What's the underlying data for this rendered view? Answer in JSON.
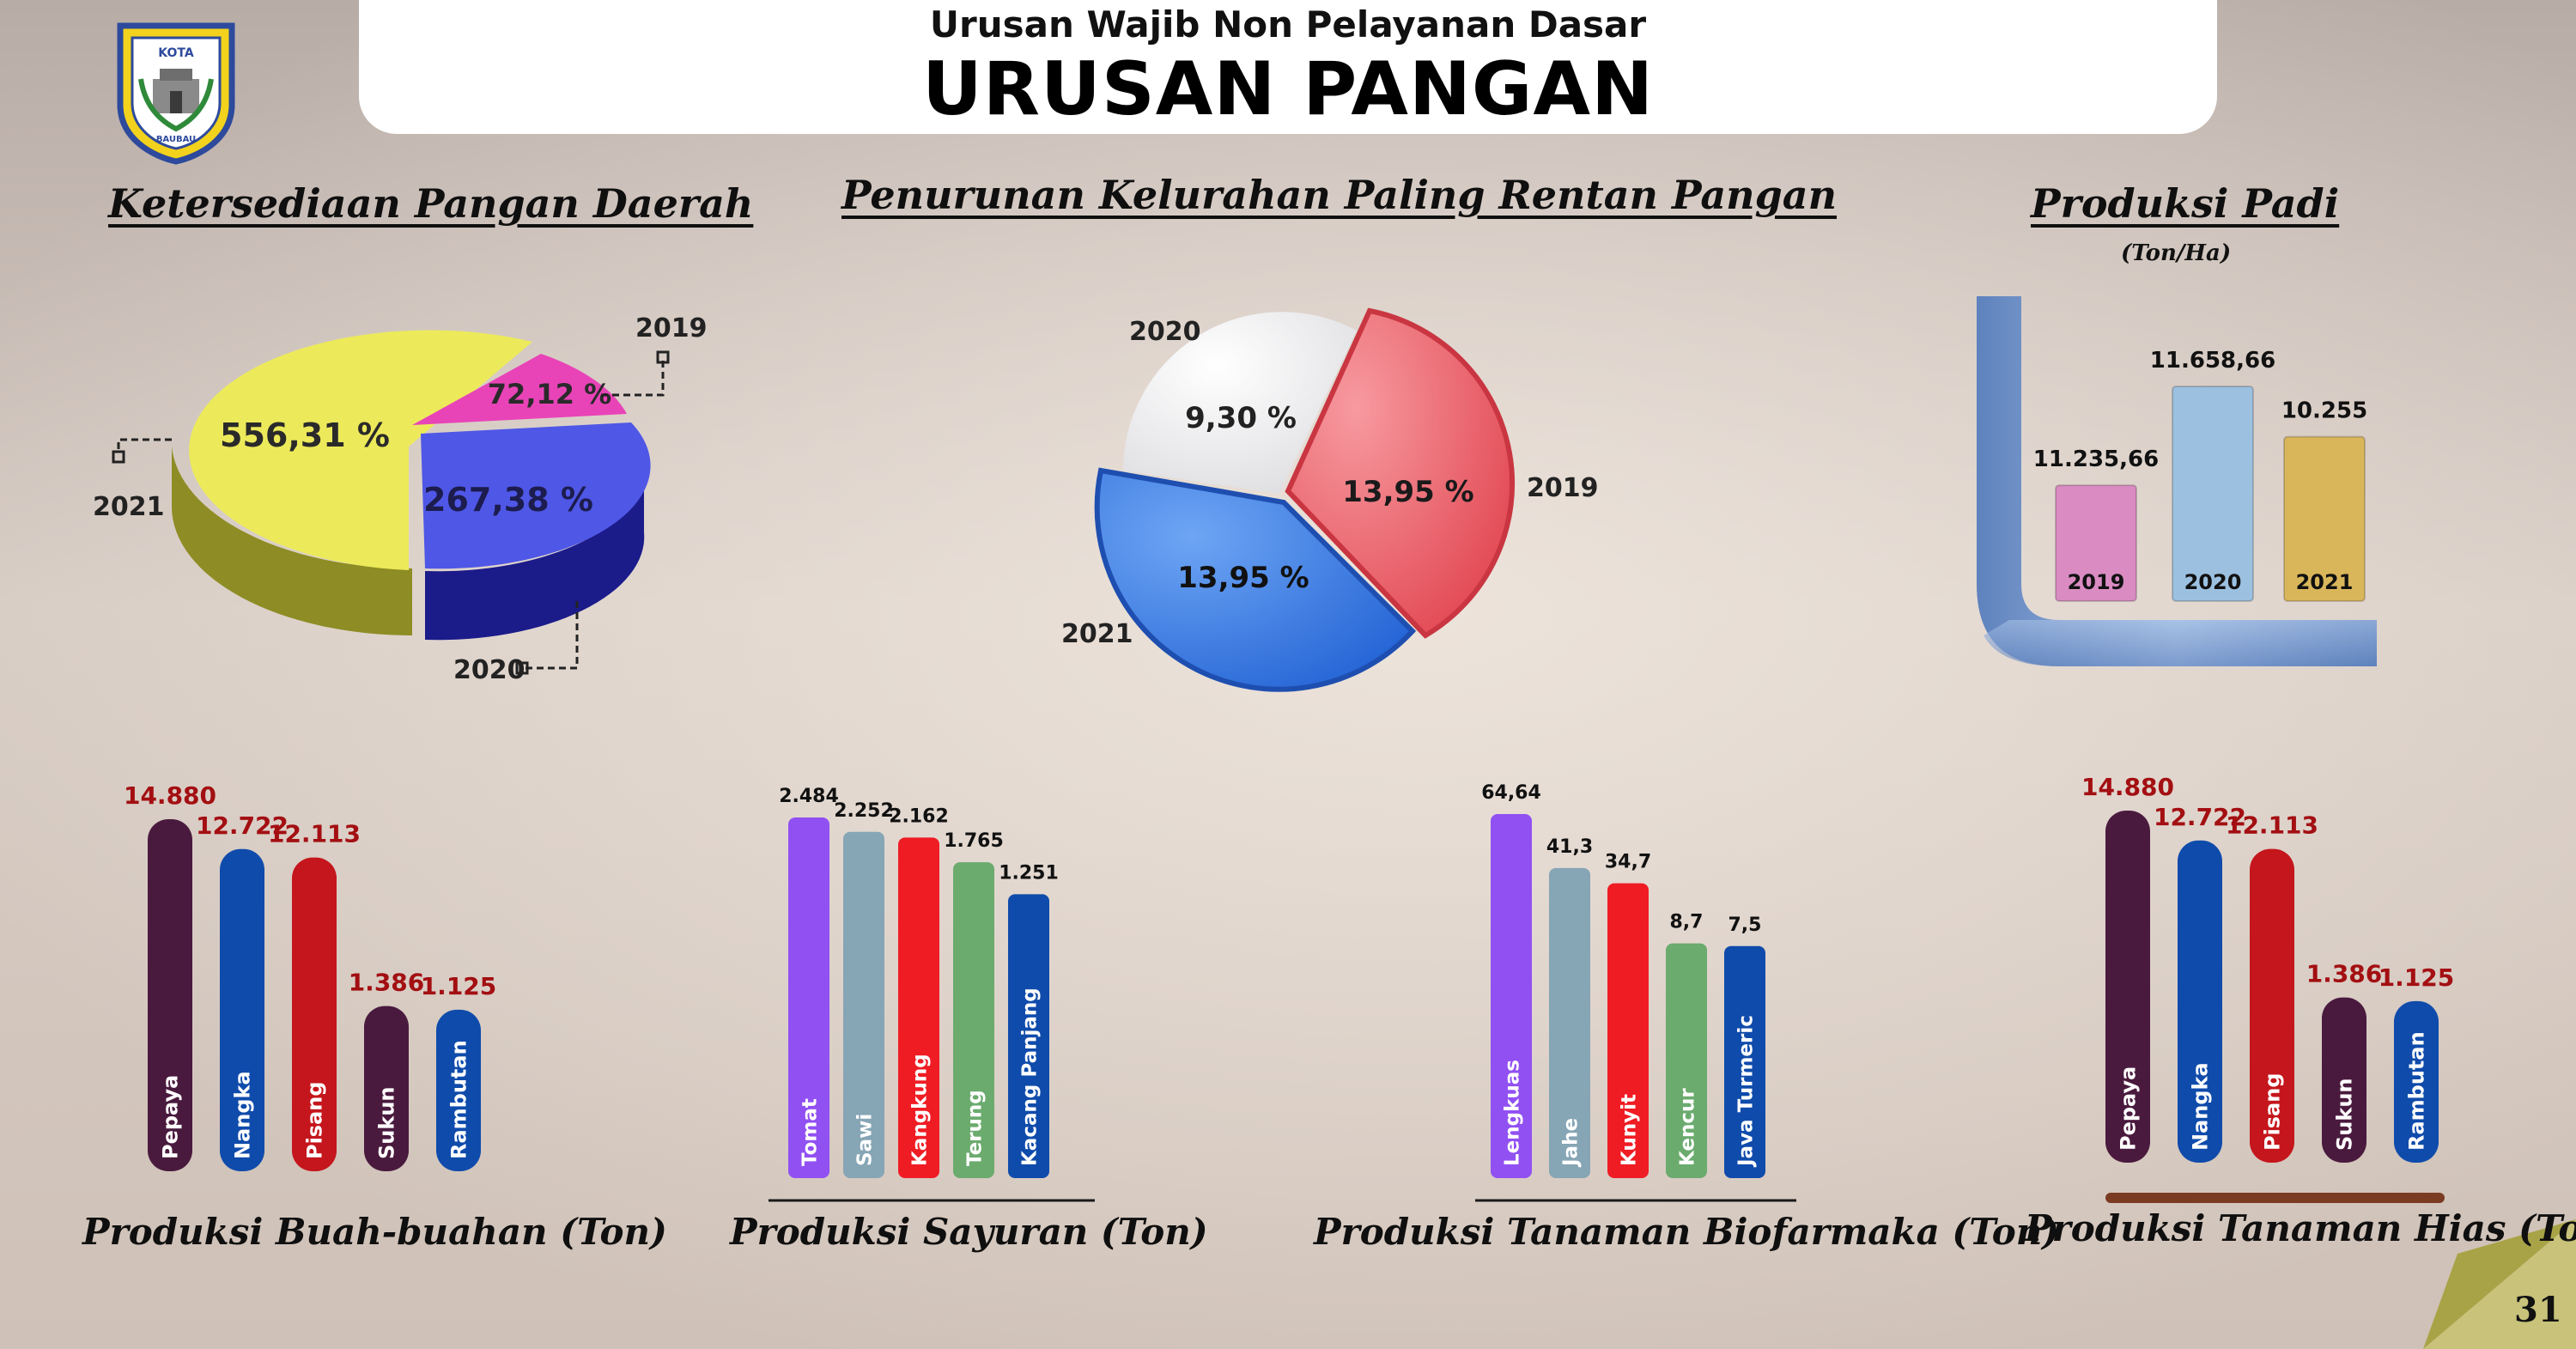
{
  "header": {
    "subtitle": "Urusan Wajib Non Pelayanan Dasar",
    "title": "URUSAN PANGAN"
  },
  "logo": {
    "top_text": "KOTA",
    "bottom_text": "BAUBAU"
  },
  "page_number": "31",
  "colors": {
    "pie1_2021": "#ecea5a",
    "pie1_2020": "#4f57e6",
    "pie1_2019": "#e844b8",
    "pie2_2020": "#ebebed",
    "pie2_2019": "#ee5a62",
    "pie2_2021": "#3b7ae0",
    "pipe": "#7ea2d6"
  },
  "chart_data": [
    {
      "id": "ketersediaan",
      "type": "pie",
      "title": "Ketersediaan Pangan Daerah",
      "slices": [
        {
          "label": "2021",
          "value": 556.31,
          "display": "556,31 %",
          "color": "#ecea5a"
        },
        {
          "label": "2020",
          "value": 267.38,
          "display": "267,38 %",
          "color": "#4f57e6"
        },
        {
          "label": "2019",
          "value": 72.12,
          "display": "72,12 %",
          "color": "#e844b8"
        }
      ]
    },
    {
      "id": "penurunan",
      "type": "pie",
      "title": "Penurunan Kelurahan Paling Rentan Pangan",
      "slices": [
        {
          "label": "2019",
          "value": 13.95,
          "display": "13,95 %",
          "color": "#ee5a62"
        },
        {
          "label": "2021",
          "value": 13.95,
          "display": "13,95 %",
          "color": "#3b7ae0"
        },
        {
          "label": "2020",
          "value": 9.3,
          "display": "9,30 %",
          "color": "#ebebed"
        }
      ]
    },
    {
      "id": "padi",
      "type": "bar",
      "title": "Produksi Padi",
      "subtitle": "(Ton/Ha)",
      "categories": [
        "2019",
        "2020",
        "2021"
      ],
      "values": [
        11235.66,
        11658.66,
        10255
      ],
      "display": [
        "11.235,66",
        "11.658,66",
        "10.255"
      ],
      "colors": [
        "#d98bc2",
        "#9cc0e0",
        "#d9b65a"
      ]
    },
    {
      "id": "buah",
      "type": "bar",
      "title": "Produksi Buah-buahan (Ton)",
      "categories": [
        "Pepaya",
        "Nangka",
        "Pisang",
        "Sukun",
        "Rambutan"
      ],
      "values": [
        14880,
        12722,
        12113,
        1386,
        1125
      ],
      "display": [
        "14.880",
        "12.722",
        "12.113",
        "1.386",
        "1.125"
      ],
      "colors": [
        "#4a1a3e",
        "#0f4bab",
        "#c4161c",
        "#4a1a3e",
        "#0f4bab"
      ]
    },
    {
      "id": "sayuran",
      "type": "bar",
      "title": "Produksi Sayuran (Ton)",
      "categories": [
        "Tomat",
        "Sawi",
        "Kangkung",
        "Terung",
        "Kacang Panjang"
      ],
      "values": [
        2484,
        2252,
        2162,
        1765,
        1251
      ],
      "display": [
        "2.484",
        "2.252",
        "2.162",
        "1.765",
        "1.251"
      ],
      "colors": [
        "#9150f2",
        "#86a5b5",
        "#ef1c24",
        "#6bab6e",
        "#0f4bab"
      ]
    },
    {
      "id": "biofarmaka",
      "type": "bar",
      "title": "Produksi Tanaman Biofarmaka (Ton)",
      "categories": [
        "Lengkuas",
        "Jahe",
        "Kunyit",
        "Kencur",
        "Java Turmeric"
      ],
      "values": [
        64.64,
        41.3,
        34.7,
        8.7,
        7.5
      ],
      "display": [
        "64,64",
        "41,3",
        "34,7",
        "8,7",
        "7,5"
      ],
      "colors": [
        "#9150f2",
        "#86a5b5",
        "#ef1c24",
        "#6bab6e",
        "#0f4bab"
      ]
    },
    {
      "id": "hias",
      "type": "bar",
      "title": "Produksi Tanaman Hias (Ton)",
      "categories": [
        "Pepaya",
        "Nangka",
        "Pisang",
        "Sukun",
        "Rambutan"
      ],
      "values": [
        14880,
        12722,
        12113,
        1386,
        1125
      ],
      "display": [
        "14.880",
        "12.722",
        "12.113",
        "1.386",
        "1.125"
      ],
      "colors": [
        "#4a1a3e",
        "#0f4bab",
        "#c4161c",
        "#4a1a3e",
        "#0f4bab"
      ]
    }
  ]
}
